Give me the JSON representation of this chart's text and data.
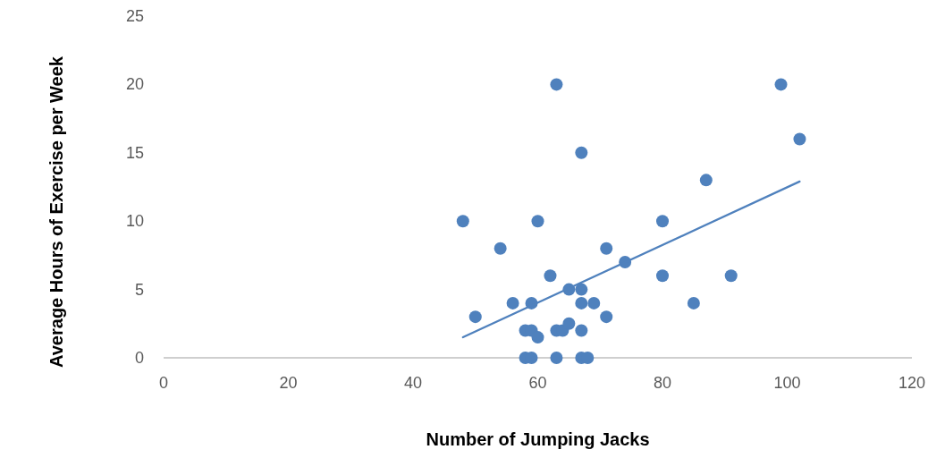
{
  "chart_data": {
    "type": "scatter",
    "xlabel": "Number of Jumping Jacks",
    "ylabel": "Average Hours of Exercise per Week",
    "xlim": [
      0,
      120
    ],
    "xticks": [
      0,
      20,
      40,
      60,
      80,
      100,
      120
    ],
    "ylim": [
      0,
      25
    ],
    "yticks": [
      0,
      5,
      10,
      15,
      20,
      25
    ],
    "grid": false,
    "marker": "circle",
    "series": [
      {
        "color": "#4f81bd",
        "x": [
          48,
          50,
          54,
          56,
          58,
          58,
          59,
          59,
          59,
          60,
          60,
          62,
          63,
          63,
          63,
          64,
          65,
          65,
          67,
          67,
          67,
          67,
          67,
          68,
          69,
          71,
          71,
          74,
          80,
          80,
          85,
          87,
          91,
          99,
          102
        ],
        "values": [
          10,
          3,
          8,
          4,
          2,
          0,
          4,
          2,
          0,
          10,
          1.5,
          6,
          20,
          2,
          0,
          2,
          5,
          2.5,
          15,
          5,
          4,
          2,
          0,
          0,
          4,
          8,
          3,
          7,
          10,
          6,
          4,
          13,
          6,
          20,
          16
        ]
      },
      {
        "type": "line",
        "color": "#4f81bd",
        "marker": "none",
        "x": [
          48,
          102
        ],
        "values": [
          1.5,
          12.9
        ]
      }
    ]
  }
}
